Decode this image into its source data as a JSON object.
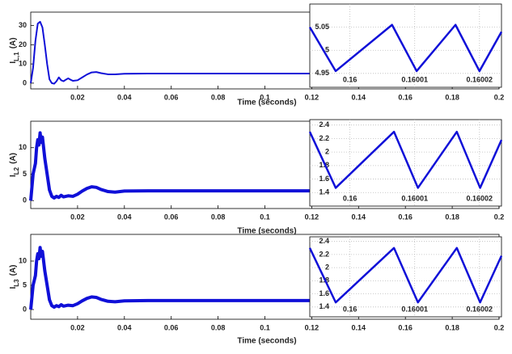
{
  "chart_data": [
    {
      "type": "line",
      "ylabel_symbol": "I",
      "ylabel_subscript": "L,1",
      "ylabel_unit": "(A)",
      "xlabel": "Time (seconds)",
      "color": "#1010d8",
      "x": [
        0,
        0.001,
        0.002,
        0.003,
        0.004,
        0.005,
        0.006,
        0.007,
        0.008,
        0.009,
        0.01,
        0.011,
        0.012,
        0.013,
        0.014,
        0.015,
        0.016,
        0.017,
        0.018,
        0.02,
        0.022,
        0.024,
        0.026,
        0.028,
        0.03,
        0.033,
        0.036,
        0.04,
        0.05,
        0.06,
        0.08,
        0.1,
        0.12
      ],
      "values": [
        0,
        8,
        22,
        31,
        32,
        29,
        20,
        10,
        2,
        0,
        -0.3,
        1,
        3,
        1.5,
        1,
        1.8,
        2.5,
        1.8,
        1.2,
        1.5,
        3,
        4.5,
        5.6,
        5.8,
        5.2,
        4.6,
        4.6,
        4.9,
        5,
        5,
        5,
        5,
        5
      ],
      "xlim": [
        0,
        0.2
      ],
      "ylim": [
        -3,
        37
      ],
      "xticks": [
        0.02,
        0.04,
        0.06,
        0.08,
        0.1,
        0.12,
        0.14,
        0.16,
        0.18,
        0.2
      ],
      "yticks": [
        0,
        10,
        20,
        30
      ],
      "grid": false
    },
    {
      "type": "line",
      "color": "#1010d8",
      "x": [
        0.1599938,
        0.1599978,
        0.1600065,
        0.1600103,
        0.1600163,
        0.16002,
        0.1600234
      ],
      "values": [
        5.05,
        4.955,
        5.055,
        4.955,
        5.055,
        4.955,
        5.04
      ],
      "xlim": [
        0.1599938,
        0.1600234
      ],
      "ylim": [
        4.92,
        5.1
      ],
      "xticks": [
        0.16,
        0.16001,
        0.16002
      ],
      "yticks": [
        4.95,
        5,
        5.05
      ],
      "grid": true
    },
    {
      "type": "line",
      "ylabel_symbol": "I",
      "ylabel_subscript": "L2",
      "ylabel_unit": "(A)",
      "xlabel": "Time (seconds)",
      "color": "#1010d8",
      "x": [
        0,
        0.001,
        0.002,
        0.0025,
        0.003,
        0.0035,
        0.004,
        0.0045,
        0.005,
        0.006,
        0.007,
        0.008,
        0.009,
        0.01,
        0.011,
        0.012,
        0.013,
        0.014,
        0.016,
        0.018,
        0.02,
        0.022,
        0.024,
        0.026,
        0.028,
        0.03,
        0.033,
        0.036,
        0.04,
        0.05,
        0.06,
        0.08,
        0.1,
        0.12
      ],
      "values": [
        0,
        5,
        7,
        10,
        11.5,
        10.5,
        12.8,
        11,
        12,
        8,
        5,
        2,
        0.8,
        0.5,
        0.8,
        0.6,
        1,
        0.7,
        0.9,
        0.8,
        1.2,
        1.8,
        2.3,
        2.6,
        2.5,
        2.1,
        1.7,
        1.6,
        1.8,
        1.85,
        1.85,
        1.85,
        1.85,
        1.85
      ],
      "xlim": [
        0,
        0.2
      ],
      "ylim": [
        -1.5,
        15
      ],
      "xticks": [
        0.02,
        0.04,
        0.06,
        0.08,
        0.1,
        0.12,
        0.14,
        0.16,
        0.18,
        0.2
      ],
      "yticks": [
        0,
        5,
        10
      ],
      "grid": false
    },
    {
      "type": "line",
      "color": "#1010d8",
      "x": [
        0.1599938,
        0.1599978,
        0.1600068,
        0.1600105,
        0.1600165,
        0.1600201,
        0.1600234
      ],
      "values": [
        2.3,
        1.47,
        2.3,
        1.47,
        2.3,
        1.47,
        2.18
      ],
      "xlim": [
        0.1599938,
        0.1600234
      ],
      "ylim": [
        1.2,
        2.48
      ],
      "xticks": [
        0.16,
        0.16001,
        0.16002
      ],
      "yticks": [
        1.4,
        1.6,
        1.8,
        2,
        2.2,
        2.4
      ],
      "grid": true
    },
    {
      "type": "line",
      "ylabel_symbol": "I",
      "ylabel_subscript": "L3",
      "ylabel_unit": "(A)",
      "xlabel": "Time (seconds)",
      "color": "#1010d8",
      "x": [
        0,
        0.001,
        0.002,
        0.0025,
        0.003,
        0.0035,
        0.004,
        0.0045,
        0.005,
        0.006,
        0.007,
        0.008,
        0.009,
        0.01,
        0.011,
        0.012,
        0.013,
        0.014,
        0.016,
        0.018,
        0.02,
        0.022,
        0.024,
        0.026,
        0.028,
        0.03,
        0.033,
        0.036,
        0.04,
        0.05,
        0.06,
        0.08,
        0.1,
        0.12
      ],
      "values": [
        0,
        5,
        7,
        10,
        11.5,
        10.5,
        12.8,
        11,
        12,
        8,
        5,
        2,
        0.8,
        0.5,
        0.8,
        0.6,
        1,
        0.7,
        0.9,
        0.8,
        1.2,
        1.8,
        2.3,
        2.6,
        2.5,
        2.1,
        1.7,
        1.6,
        1.8,
        1.85,
        1.85,
        1.85,
        1.85,
        1.85
      ],
      "xlim": [
        0,
        0.2
      ],
      "ylim": [
        -2,
        15.5
      ],
      "xticks": [
        0.02,
        0.04,
        0.06,
        0.08,
        0.1,
        0.12,
        0.14,
        0.16,
        0.18,
        0.2
      ],
      "yticks": [
        0,
        5,
        10
      ],
      "grid": false
    },
    {
      "type": "line",
      "color": "#1010d8",
      "x": [
        0.1599938,
        0.1599978,
        0.1600068,
        0.1600105,
        0.1600165,
        0.1600201,
        0.1600234
      ],
      "values": [
        2.3,
        1.47,
        2.3,
        1.47,
        2.3,
        1.47,
        2.18
      ],
      "xlim": [
        0.1599938,
        0.1600234
      ],
      "ylim": [
        1.25,
        2.47
      ],
      "xticks": [
        0.16,
        0.16001,
        0.16002
      ],
      "yticks": [
        1.4,
        1.6,
        1.8,
        2,
        2.2,
        2.4
      ],
      "grid": true
    }
  ]
}
